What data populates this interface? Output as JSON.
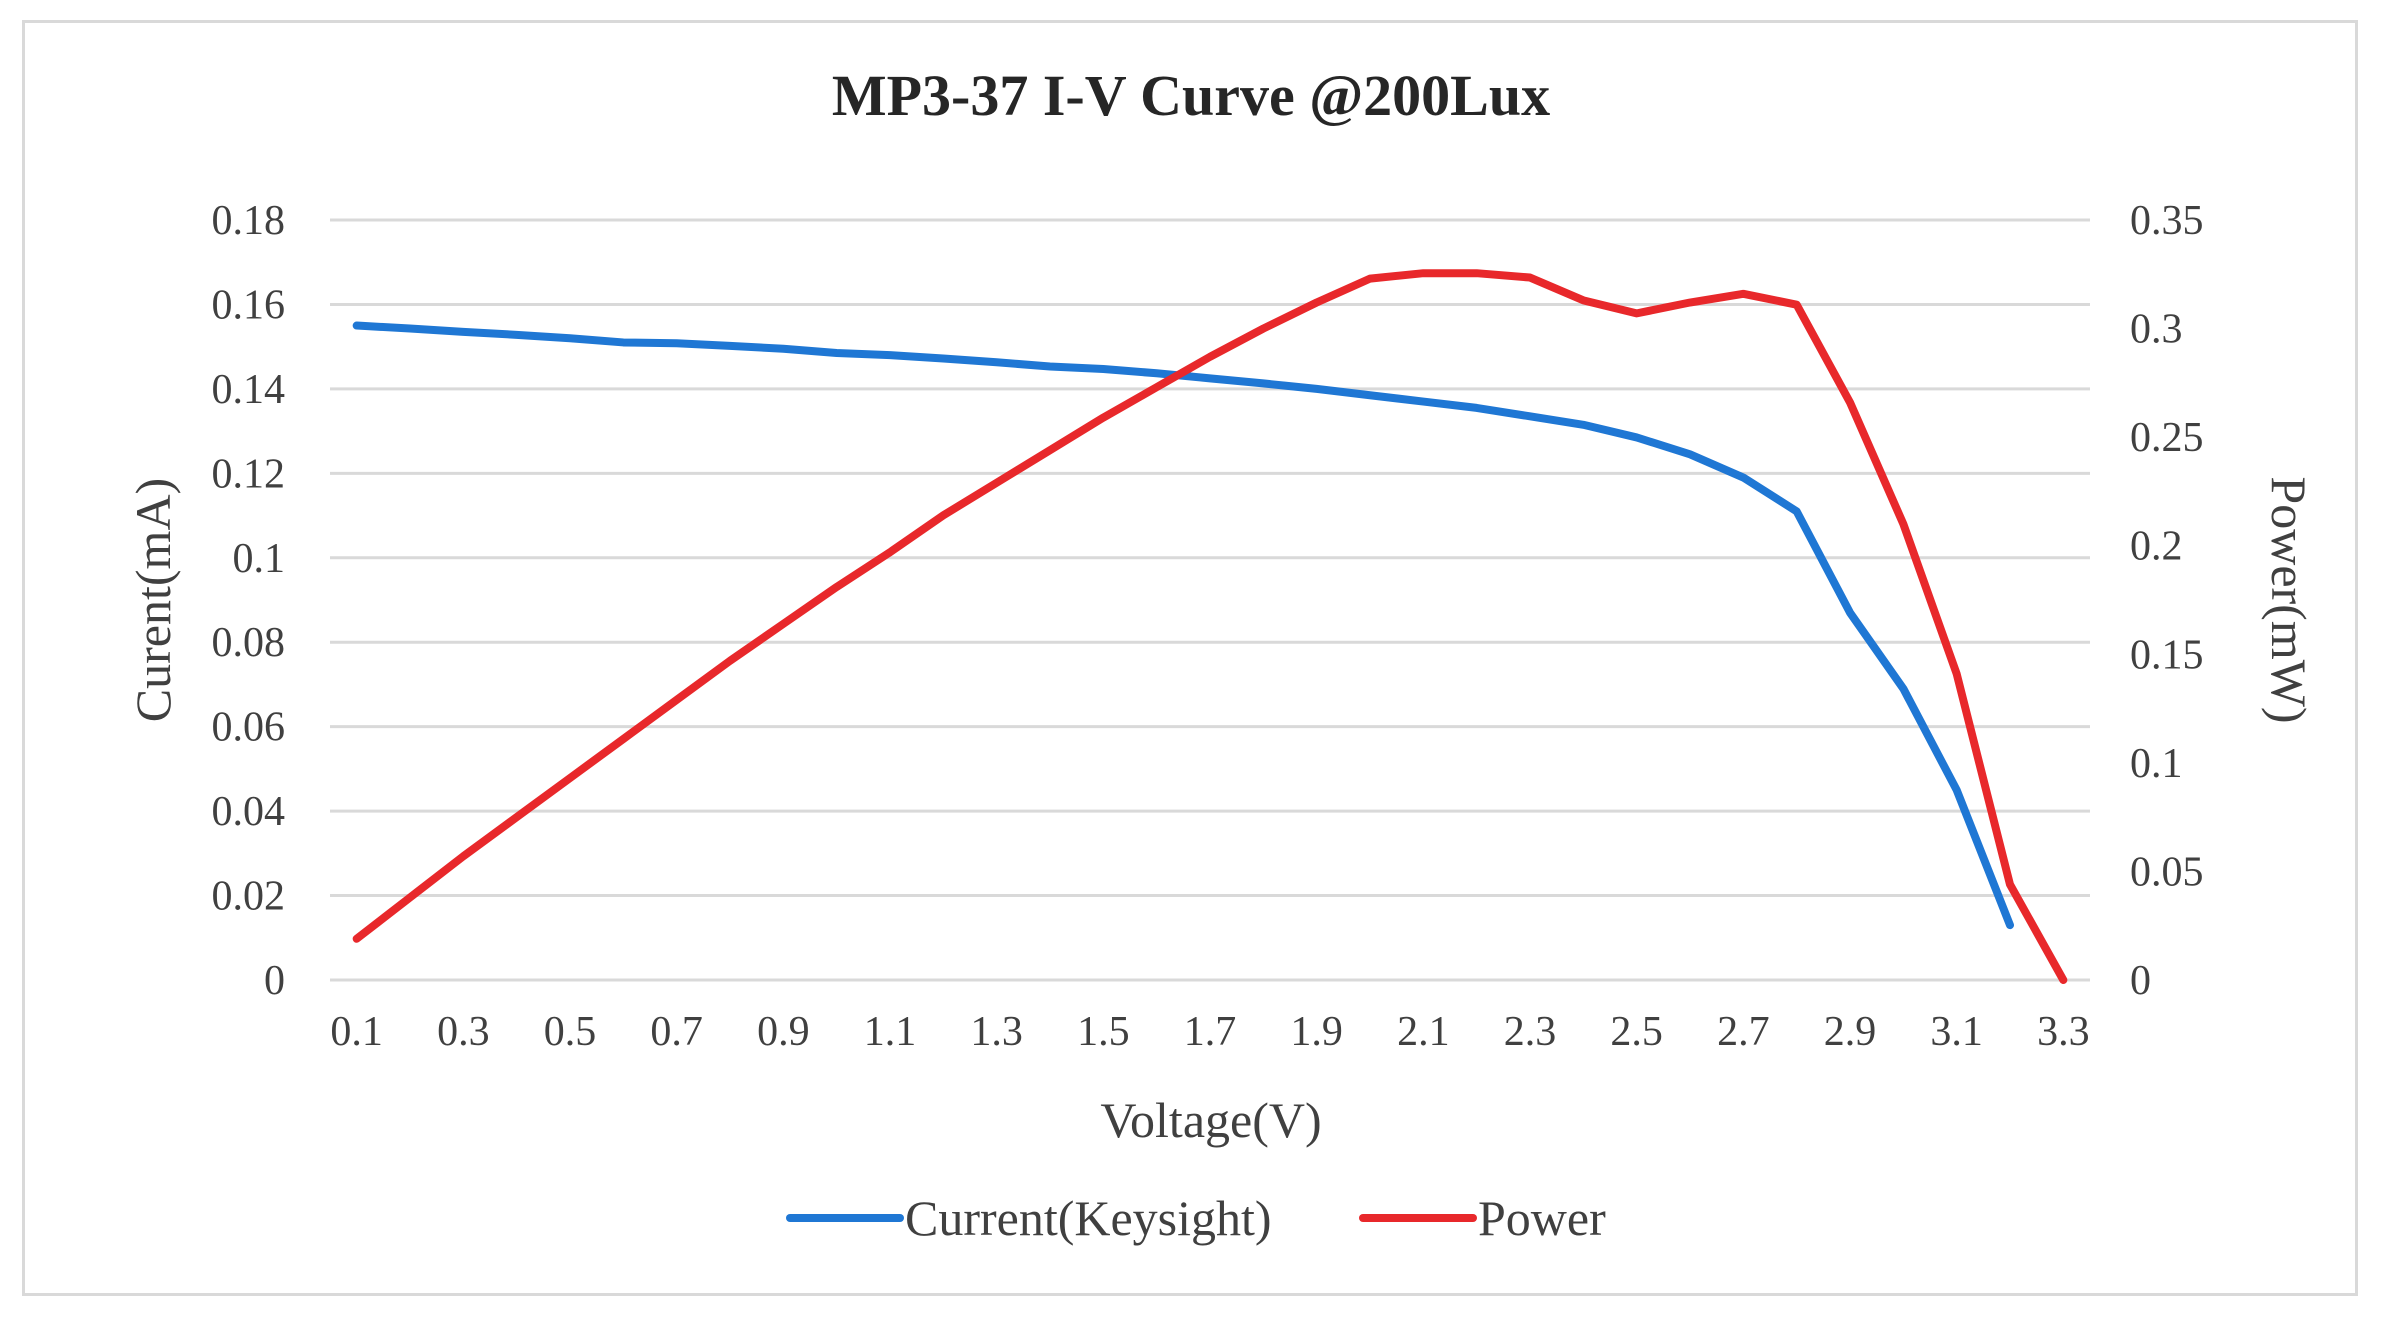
{
  "chart_data": {
    "type": "line",
    "title": "MP3-37 I-V Curve @200Lux",
    "xlabel": "Voltage(V)",
    "ylabel": "Curent(mA)",
    "y2label": "Power(mW)",
    "categories": [
      "0.1",
      "0.2",
      "0.3",
      "0.4",
      "0.5",
      "0.6",
      "0.7",
      "0.8",
      "0.9",
      "1",
      "1.1",
      "1.2",
      "1.3",
      "1.4",
      "1.5",
      "1.6",
      "1.7",
      "1.8",
      "1.9",
      "2",
      "2.1",
      "2.2",
      "2.3",
      "2.4",
      "2.5",
      "2.6",
      "2.7",
      "2.8",
      "2.9",
      "3",
      "3.1",
      "3.2",
      "3.3"
    ],
    "x_tick_labels": [
      "0.1",
      "0.3",
      "0.5",
      "0.7",
      "0.9",
      "1.1",
      "1.3",
      "1.5",
      "1.7",
      "1.9",
      "2.1",
      "2.3",
      "2.5",
      "2.7",
      "2.9",
      "3.1",
      "3.3"
    ],
    "ylim": [
      0,
      0.18
    ],
    "y_ticks": [
      "0",
      "0.02",
      "0.04",
      "0.06",
      "0.08",
      "0.1",
      "0.12",
      "0.14",
      "0.16",
      "0.18"
    ],
    "y2lim": [
      0,
      0.35
    ],
    "y2_ticks": [
      "0",
      "0.05",
      "0.1",
      "0.15",
      "0.2",
      "0.25",
      "0.3",
      "0.35"
    ],
    "grid": true,
    "legend_position": "bottom",
    "series": [
      {
        "name": "Current(Keysight)",
        "axis": "left",
        "color": "#1f77d4",
        "values": [
          0.155,
          0.1543,
          0.1535,
          0.1528,
          0.152,
          0.151,
          0.1508,
          0.1502,
          0.1495,
          0.1485,
          0.148,
          0.1472,
          0.1463,
          0.1453,
          0.1447,
          0.1437,
          0.1425,
          0.1413,
          0.14,
          0.1385,
          0.137,
          0.1355,
          0.1335,
          0.1315,
          0.1285,
          0.1245,
          0.119,
          0.111,
          0.087,
          0.069,
          0.045,
          0.013,
          null
        ]
      },
      {
        "name": "Power",
        "axis": "right",
        "color": "#e8282b",
        "values": [
          0.019,
          0.038,
          0.057,
          0.075,
          0.093,
          0.111,
          0.129,
          0.147,
          0.164,
          0.181,
          0.197,
          0.214,
          0.229,
          0.244,
          0.259,
          0.273,
          0.287,
          0.3,
          0.312,
          0.323,
          0.3255,
          0.3255,
          0.3235,
          0.313,
          0.307,
          0.312,
          0.316,
          0.311,
          0.266,
          0.21,
          0.141,
          0.044,
          0.0
        ]
      }
    ]
  }
}
